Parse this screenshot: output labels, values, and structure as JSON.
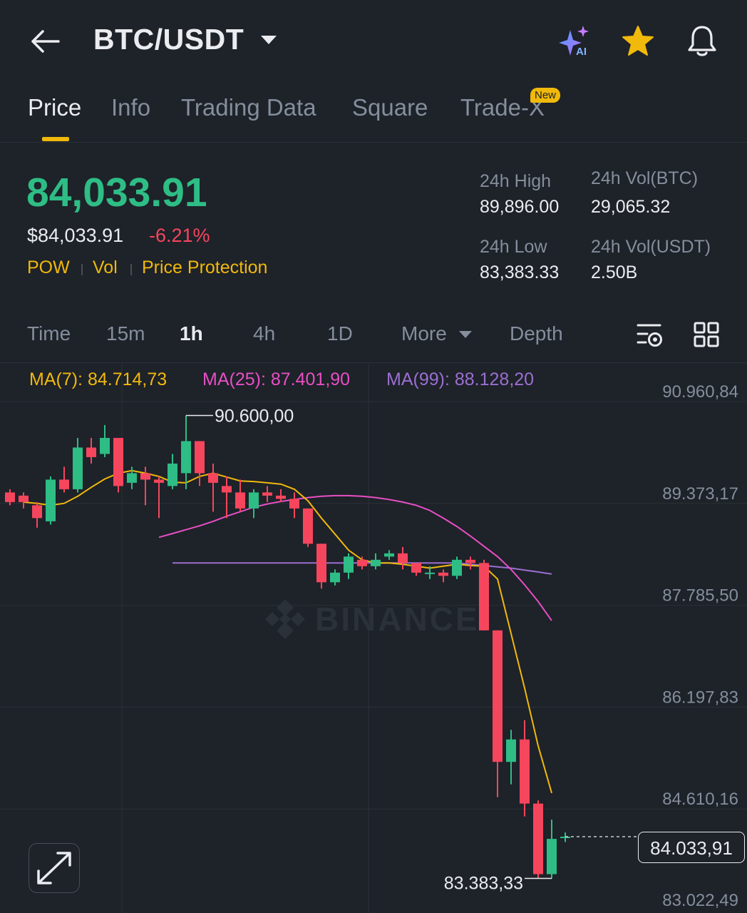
{
  "header": {
    "pair": "BTC/USDT",
    "ai_badge": "AI"
  },
  "tabs": [
    {
      "label": "Price",
      "active": true
    },
    {
      "label": "Info"
    },
    {
      "label": "Trading Data"
    },
    {
      "label": "Square"
    },
    {
      "label": "Trade-X",
      "badge": "New"
    }
  ],
  "price": {
    "last": "84,033.91",
    "usd": "$84,033.91",
    "change_pct": "-6.21%",
    "tags": [
      "POW",
      "Vol",
      "Price Protection"
    ]
  },
  "stats": {
    "high_label": "24h High",
    "high": "89,896.00",
    "low_label": "24h Low",
    "low": "83,383.33",
    "vol_btc_label": "24h Vol(BTC)",
    "vol_btc": "29,065.32",
    "vol_usdt_label": "24h Vol(USDT)",
    "vol_usdt": "2.50B"
  },
  "intervals": {
    "time": "Time",
    "i15m": "15m",
    "i1h": "1h",
    "i4h": "4h",
    "i1d": "1D",
    "more": "More",
    "depth": "Depth"
  },
  "ma": {
    "ma7": "MA(7): 84.714,73",
    "ma25": "MA(25): 87.401,90",
    "ma99": "MA(99): 88.128,20"
  },
  "colors": {
    "up": "#2ebd85",
    "down": "#f6465d",
    "accent": "#f0b90b",
    "ma7": "#f0b90b",
    "ma25": "#e84fc4",
    "ma99": "#9b6fd1"
  },
  "icons": [
    "back-arrow-icon",
    "caret-down-icon",
    "ai-sparkle-icon",
    "star-icon",
    "bell-icon",
    "chart-settings-icon",
    "grid-icon",
    "expand-icon"
  ],
  "chart_data": {
    "type": "candlestick",
    "interval": "1h",
    "watermark": "BINANCE",
    "y_ticks": [
      "90.960,84",
      "89.373,17",
      "87.785,50",
      "86.197,83",
      "84.610,16",
      "83.022,49"
    ],
    "ylim": [
      83022.49,
      90960.84
    ],
    "max_label": "90.600,00",
    "max_value": 90600.0,
    "min_label": "83.383,33",
    "min_value": 83383.33,
    "current_label": "84.033,91",
    "current_value": 84033.91,
    "candles": [
      {
        "o": 89400,
        "c": 89250,
        "h": 89450,
        "l": 89200
      },
      {
        "o": 89350,
        "c": 89250,
        "h": 89400,
        "l": 89150
      },
      {
        "o": 89200,
        "c": 89000,
        "h": 89250,
        "l": 88850
      },
      {
        "o": 88950,
        "c": 89600,
        "h": 89650,
        "l": 88900
      },
      {
        "o": 89600,
        "c": 89450,
        "h": 89800,
        "l": 89400
      },
      {
        "o": 89450,
        "c": 90100,
        "h": 90250,
        "l": 89400
      },
      {
        "o": 90100,
        "c": 89950,
        "h": 90250,
        "l": 89850
      },
      {
        "o": 90000,
        "c": 90250,
        "h": 90450,
        "l": 89950
      },
      {
        "o": 90250,
        "c": 89500,
        "h": 90250,
        "l": 89400
      },
      {
        "o": 89550,
        "c": 89700,
        "h": 89800,
        "l": 89450
      },
      {
        "o": 89700,
        "c": 89600,
        "h": 89800,
        "l": 89200
      },
      {
        "o": 89600,
        "c": 89550,
        "h": 89650,
        "l": 89000
      },
      {
        "o": 89500,
        "c": 89850,
        "h": 90000,
        "l": 89450
      },
      {
        "o": 89700,
        "c": 90200,
        "h": 90600,
        "l": 89450
      },
      {
        "o": 90200,
        "c": 89700,
        "h": 90200,
        "l": 89500
      },
      {
        "o": 89700,
        "c": 89550,
        "h": 89850,
        "l": 89100
      },
      {
        "o": 89500,
        "c": 89400,
        "h": 89650,
        "l": 89000
      },
      {
        "o": 89400,
        "c": 89150,
        "h": 89600,
        "l": 89100
      },
      {
        "o": 89150,
        "c": 89400,
        "h": 89450,
        "l": 89000
      },
      {
        "o": 89400,
        "c": 89350,
        "h": 89500,
        "l": 89250
      },
      {
        "o": 89350,
        "c": 89300,
        "h": 89450,
        "l": 89250
      },
      {
        "o": 89300,
        "c": 89150,
        "h": 89400,
        "l": 89000
      },
      {
        "o": 89150,
        "c": 88600,
        "h": 89150,
        "l": 88550
      },
      {
        "o": 88600,
        "c": 88000,
        "h": 88600,
        "l": 87900
      },
      {
        "o": 88000,
        "c": 88150,
        "h": 88200,
        "l": 87950
      },
      {
        "o": 88150,
        "c": 88400,
        "h": 88450,
        "l": 88050
      },
      {
        "o": 88350,
        "c": 88250,
        "h": 88400,
        "l": 88200
      },
      {
        "o": 88250,
        "c": 88350,
        "h": 88450,
        "l": 88200
      },
      {
        "o": 88400,
        "c": 88450,
        "h": 88500,
        "l": 88350
      },
      {
        "o": 88450,
        "c": 88300,
        "h": 88550,
        "l": 88200
      },
      {
        "o": 88300,
        "c": 88150,
        "h": 88300,
        "l": 88100
      },
      {
        "o": 88150,
        "c": 88150,
        "h": 88250,
        "l": 88050
      },
      {
        "o": 88150,
        "c": 88100,
        "h": 88200,
        "l": 88000
      },
      {
        "o": 88100,
        "c": 88350,
        "h": 88400,
        "l": 88050
      },
      {
        "o": 88350,
        "c": 88300,
        "h": 88400,
        "l": 88200
      },
      {
        "o": 88300,
        "c": 87250,
        "h": 88350,
        "l": 87250
      },
      {
        "o": 87250,
        "c": 85200,
        "h": 87250,
        "l": 84650
      },
      {
        "o": 85200,
        "c": 85550,
        "h": 85700,
        "l": 84850
      },
      {
        "o": 85550,
        "c": 84550,
        "h": 85850,
        "l": 84350
      },
      {
        "o": 84550,
        "c": 83450,
        "h": 84600,
        "l": 83383.33
      },
      {
        "o": 83450,
        "c": 84000,
        "h": 84300,
        "l": 83383.33
      },
      {
        "o": 84033.91,
        "c": 84033.91,
        "h": 84100,
        "l": 83950
      }
    ],
    "ma7_values": [
      89250,
      89230,
      89200,
      89230,
      89340,
      89480,
      89610,
      89700,
      89740,
      89700,
      89650,
      89560,
      89550,
      89650,
      89700,
      89640,
      89580,
      89570,
      89550,
      89530,
      89450,
      89270,
      89000,
      88750,
      88500,
      88350,
      88300,
      88300,
      88280,
      88250,
      88220,
      88250,
      88280,
      88260,
      88250,
      88050,
      87200,
      86350,
      85450,
      84714.73
    ],
    "ma25_values": [
      88700,
      88760,
      88820,
      88880,
      88950,
      89030,
      89100,
      89170,
      89220,
      89260,
      89290,
      89320,
      89340,
      89350,
      89350,
      89340,
      89320,
      89290,
      89250,
      89200,
      89120,
      89000,
      88870,
      88720,
      88560,
      88400,
      88200,
      87960,
      87700,
      87401.9
    ],
    "ma99_values": [
      88300,
      88300,
      88300,
      88300,
      88300,
      88300,
      88300,
      88300,
      88300,
      88300,
      88300,
      88300,
      88300,
      88300,
      88300,
      88300,
      88300,
      88300,
      88300,
      88300,
      88300,
      88300,
      88280,
      88260,
      88240,
      88220,
      88190,
      88160,
      88128.2
    ]
  }
}
